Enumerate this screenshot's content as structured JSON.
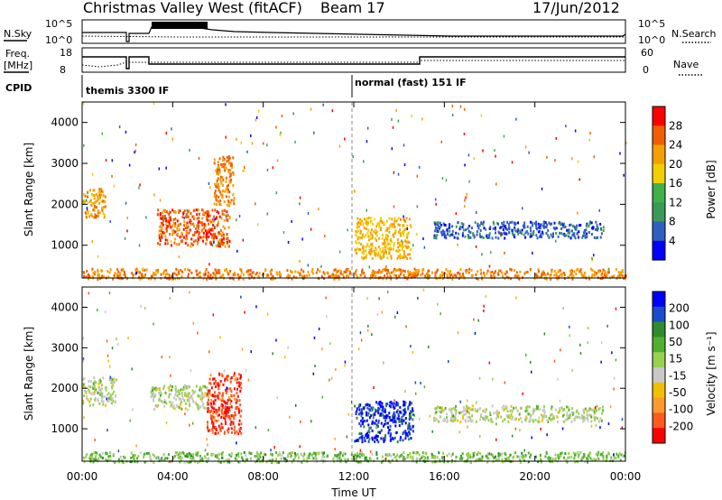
{
  "header": {
    "title": "Christmas Valley West (fitACF)",
    "beam": "Beam 17",
    "date": "17/Jun/2012"
  },
  "summary": {
    "nsky_label": "N.Sky",
    "nsearch_label": "N.Search",
    "nsky_ticks": [
      "10^5",
      "10^0"
    ],
    "nsky_ticks_right": [
      "10^5",
      "10^0"
    ],
    "freq_label": "Freq.",
    "freq_unit": "[MHz]",
    "freq_ticks": [
      "18",
      "8"
    ],
    "nave_label": "Nave",
    "nave_ticks": [
      "60",
      "0"
    ],
    "cpid_label": "CPID",
    "cpid_modes": [
      "themis 3300 IF",
      "normal (fast) 151 IF"
    ]
  },
  "colors": {
    "power_scale": [
      "#0000ff",
      "#2f5fbf",
      "#3b9a5a",
      "#3fb04a",
      "#f0d000",
      "#f5a000",
      "#f06000",
      "#ff0000"
    ],
    "velocity_scale": [
      "#ff0000",
      "#ff5a1e",
      "#ff9a30",
      "#f0c000",
      "#c8c8c8",
      "#9ad050",
      "#50b030",
      "#2e8b2e",
      "#1a4dcc",
      "#0000ff"
    ]
  },
  "chart_data": [
    {
      "type": "heatmap",
      "panel": "power",
      "ylabel": "Slant Range [km]",
      "yticks": [
        "1000",
        "2000",
        "3000",
        "4000"
      ],
      "ylim": [
        200,
        4500
      ],
      "colorbar_label": "Power [dB]",
      "colorbar_ticks": [
        "4",
        "8",
        "12",
        "16",
        "20",
        "24",
        "28"
      ],
      "clim": [
        0,
        32
      ],
      "features": [
        {
          "t_start": 3.3,
          "t_end": 6.5,
          "range_start": 1000,
          "range_end": 1900,
          "value": 26
        },
        {
          "t_start": 0.0,
          "t_end": 1.0,
          "range_start": 1700,
          "range_end": 2400,
          "value": 22
        },
        {
          "t_start": 5.8,
          "t_end": 6.7,
          "range_start": 2000,
          "range_end": 3200,
          "value": 24
        },
        {
          "t_start": 12.0,
          "t_end": 14.5,
          "range_start": 700,
          "range_end": 1700,
          "value": 20
        },
        {
          "t_start": 15.5,
          "t_end": 23.0,
          "range_start": 1200,
          "range_end": 1600,
          "value": 6
        },
        {
          "t_start": 0.0,
          "t_end": 24.0,
          "range_start": 200,
          "range_end": 450,
          "value": 24
        }
      ]
    },
    {
      "type": "heatmap",
      "panel": "velocity",
      "ylabel": "Slant Range [km]",
      "yticks": [
        "1000",
        "2000",
        "3000",
        "4000"
      ],
      "ylim": [
        200,
        4500
      ],
      "colorbar_label": "Velocity [m s⁻¹]",
      "colorbar_ticks": [
        "200",
        "100",
        "50",
        "15",
        "-15",
        "-50",
        "-100",
        "-200"
      ],
      "clim": [
        -250,
        250
      ],
      "features": [
        {
          "t_start": 0.0,
          "t_end": 1.5,
          "range_start": 1600,
          "range_end": 2300,
          "value": 0
        },
        {
          "t_start": 3.0,
          "t_end": 5.5,
          "range_start": 1500,
          "range_end": 2100,
          "value": 0
        },
        {
          "t_start": 5.5,
          "t_end": 7.0,
          "range_start": 900,
          "range_end": 2400,
          "value": -200
        },
        {
          "t_start": 12.0,
          "t_end": 14.6,
          "range_start": 700,
          "range_end": 1700,
          "value": 200
        },
        {
          "t_start": 15.5,
          "t_end": 23.0,
          "range_start": 1200,
          "range_end": 1600,
          "value": 0
        },
        {
          "t_start": 0.0,
          "t_end": 24.0,
          "range_start": 200,
          "range_end": 450,
          "value": 50
        }
      ],
      "x": [
        "00:00",
        "04:00",
        "08:00",
        "12:00",
        "16:00",
        "20:00",
        "00:00"
      ],
      "xlabel": "Time UT"
    }
  ]
}
